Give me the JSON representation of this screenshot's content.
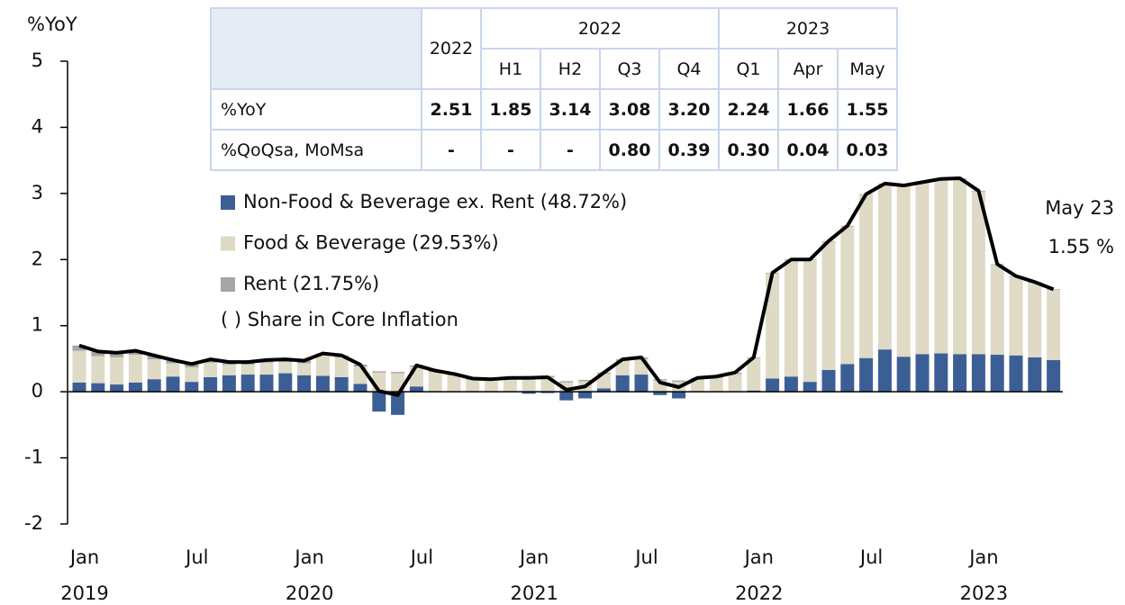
{
  "chart_data": {
    "type": "stacked-bar-line",
    "y_axis_label": "%YoY",
    "ylim": [
      -2,
      5
    ],
    "yticks": [
      -2,
      -1,
      0,
      1,
      2,
      3,
      4,
      5
    ],
    "grid": false,
    "categories": [
      "Jan",
      null,
      null,
      null,
      null,
      null,
      "Jul",
      null,
      null,
      null,
      null,
      null,
      "Jan",
      null,
      null,
      null,
      null,
      null,
      "Jul",
      null,
      null,
      null,
      null,
      null,
      "Jan",
      null,
      null,
      null,
      null,
      null,
      "Jul",
      null,
      null,
      null,
      null,
      null,
      "Jan",
      null,
      null,
      null,
      null,
      null,
      "Jul",
      null,
      null,
      null,
      null,
      null,
      "Jan",
      null,
      null,
      null,
      null
    ],
    "category_years": [
      "2019",
      null,
      null,
      null,
      null,
      null,
      null,
      null,
      null,
      null,
      null,
      null,
      "2020",
      null,
      null,
      null,
      null,
      null,
      null,
      null,
      null,
      null,
      null,
      null,
      "2021",
      null,
      null,
      null,
      null,
      null,
      null,
      null,
      null,
      null,
      null,
      null,
      "2022",
      null,
      null,
      null,
      null,
      null,
      null,
      null,
      null,
      null,
      null,
      null,
      "2023",
      null,
      null,
      null,
      null
    ],
    "series": [
      {
        "name": "Non-Food & Beverage ex. Rent (48.72%)",
        "color": "#3b5f95",
        "values": [
          0.14,
          0.13,
          0.11,
          0.14,
          0.19,
          0.23,
          0.15,
          0.22,
          0.25,
          0.26,
          0.26,
          0.28,
          0.25,
          0.24,
          0.22,
          0.12,
          -0.3,
          -0.35,
          0.08,
          0.0,
          0.0,
          0.0,
          0.0,
          0.0,
          -0.03,
          -0.02,
          -0.13,
          -0.1,
          0.05,
          0.25,
          0.26,
          -0.05,
          -0.1,
          0.0,
          0.0,
          0.0,
          0.02,
          0.2,
          0.23,
          0.15,
          0.33,
          0.42,
          0.51,
          0.64,
          0.53,
          0.57,
          0.58,
          0.57,
          0.57,
          0.56,
          0.55,
          0.52,
          0.48
        ]
      },
      {
        "name": "Food & Beverage (29.53%)",
        "color": "#dedac6",
        "values": [
          0.48,
          0.41,
          0.41,
          0.42,
          0.3,
          0.2,
          0.22,
          0.22,
          0.16,
          0.15,
          0.18,
          0.17,
          0.18,
          0.31,
          0.3,
          0.26,
          0.29,
          0.28,
          0.3,
          0.3,
          0.25,
          0.18,
          0.17,
          0.19,
          0.22,
          0.22,
          0.14,
          0.16,
          0.22,
          0.22,
          0.24,
          0.17,
          0.15,
          0.19,
          0.21,
          0.27,
          0.49,
          1.59,
          1.76,
          1.84,
          1.94,
          2.08,
          2.47,
          2.5,
          2.58,
          2.59,
          2.63,
          2.65,
          2.46,
          1.36,
          1.19,
          1.13,
          1.06
        ]
      },
      {
        "name": "Rent (21.75%)",
        "color": "#a6a6a6",
        "values": [
          0.08,
          0.07,
          0.07,
          0.06,
          0.06,
          0.05,
          0.05,
          0.05,
          0.04,
          0.04,
          0.04,
          0.04,
          0.04,
          0.03,
          0.03,
          0.03,
          0.02,
          0.02,
          0.02,
          0.02,
          0.02,
          0.02,
          0.02,
          0.02,
          0.02,
          0.02,
          0.02,
          0.02,
          0.02,
          0.02,
          0.02,
          0.02,
          0.02,
          0.02,
          0.02,
          0.02,
          0.01,
          0.01,
          0.01,
          0.01,
          0.01,
          0.01,
          0.01,
          0.01,
          0.01,
          0.01,
          0.01,
          0.01,
          0.01,
          0.01,
          0.01,
          0.01,
          0.01
        ]
      }
    ],
    "line": {
      "color": "#000000",
      "values": [
        0.7,
        0.61,
        0.59,
        0.62,
        0.55,
        0.48,
        0.42,
        0.49,
        0.45,
        0.45,
        0.48,
        0.49,
        0.47,
        0.58,
        0.55,
        0.41,
        0.01,
        -0.05,
        0.4,
        0.32,
        0.27,
        0.2,
        0.19,
        0.21,
        0.21,
        0.22,
        0.03,
        0.08,
        0.29,
        0.49,
        0.52,
        0.14,
        0.07,
        0.21,
        0.23,
        0.29,
        0.52,
        1.8,
        2.0,
        2.0,
        2.28,
        2.51,
        2.99,
        3.15,
        3.12,
        3.17,
        3.22,
        3.23,
        3.04,
        1.93,
        1.75,
        1.66,
        1.55
      ]
    },
    "legend_note": "( ) Share in Core Inflation",
    "annotations": [
      "May 23",
      "1.55 %"
    ]
  },
  "table": {
    "first_header": "2022",
    "groups": [
      {
        "label": "2022",
        "columns": [
          "H1",
          "H2",
          "Q3",
          "Q4"
        ]
      },
      {
        "label": "2023",
        "columns": [
          "Q1",
          "Apr",
          "May"
        ]
      }
    ],
    "rows": [
      {
        "label": "%YoY",
        "cells": [
          "2.51",
          "1.85",
          "3.14",
          "3.08",
          "3.20",
          "2.24",
          "1.66",
          "1.55"
        ]
      },
      {
        "label": "%QoQsa, MoMsa",
        "cells": [
          "-",
          "-",
          "-",
          "0.80",
          "0.39",
          "0.30",
          "0.04",
          "0.03"
        ]
      }
    ]
  }
}
